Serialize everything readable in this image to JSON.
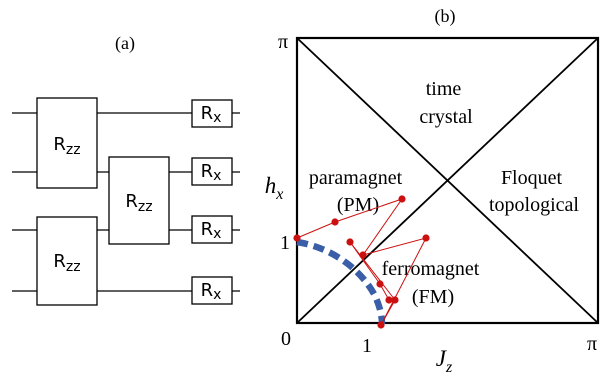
{
  "panel_a": {
    "label": "(a)",
    "gates": {
      "rzz_base": "R",
      "rzz_sub": "zz",
      "rx_base": "R",
      "rx_sub": "x"
    }
  },
  "panel_b": {
    "label": "(b)",
    "y_axis": {
      "symbol": "h",
      "subscript": "x",
      "tick_top": "π",
      "tick_one": "1"
    },
    "x_axis": {
      "symbol": "J",
      "subscript": "z",
      "tick_zero": "0",
      "tick_one": "1",
      "tick_right": "π"
    },
    "regions": {
      "time_crystal": [
        "time",
        "crystal"
      ],
      "paramagnet": [
        "paramagnet",
        "(PM)"
      ],
      "floquet": [
        "Floquet",
        "topological"
      ],
      "ferromagnet": [
        "ferromagnet",
        "(FM)"
      ]
    },
    "colors": {
      "trajectory": "#cc1010",
      "boundary": "#3a5fa8"
    }
  }
}
